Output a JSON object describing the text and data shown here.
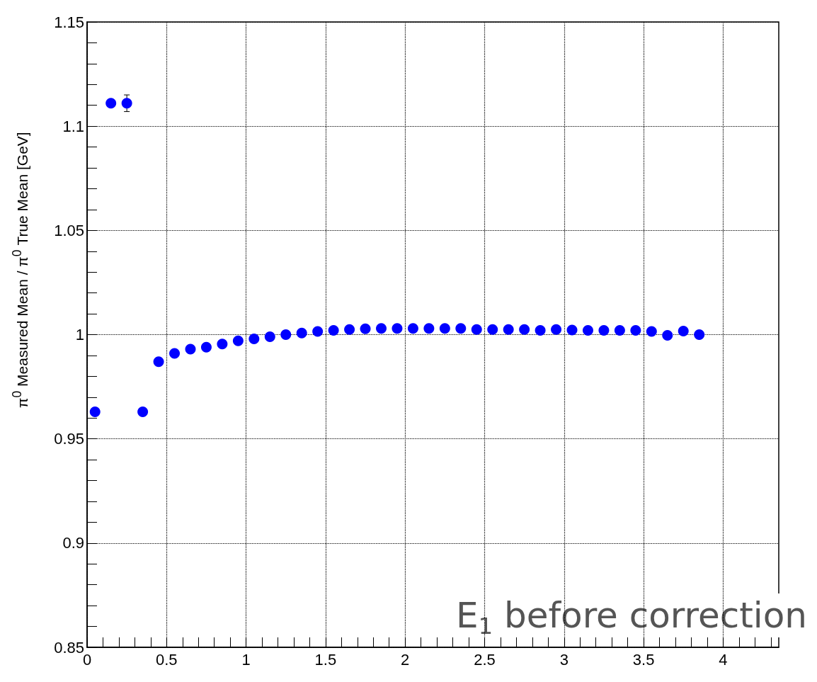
{
  "chart_data": {
    "type": "scatter",
    "ylabel": "π$^{0}$ Measured Mean / π$^{0}$ True Mean [GeV]",
    "annotations": [
      "E$_{1}$ before correction"
    ],
    "x": [
      0.05,
      0.15,
      0.25,
      0.35,
      0.45,
      0.55,
      0.65,
      0.75,
      0.85,
      0.95,
      1.05,
      1.15,
      1.25,
      1.35,
      1.45,
      1.55,
      1.65,
      1.75,
      1.85,
      1.95,
      2.05,
      2.15,
      2.25,
      2.35,
      2.45,
      2.55,
      2.65,
      2.75,
      2.85,
      2.95,
      3.05,
      3.15,
      3.25,
      3.35,
      3.45,
      3.55,
      3.65,
      3.75,
      3.85
    ],
    "series": [
      {
        "color": "#0000ff",
        "values": [
          0.963,
          1.111,
          1.111,
          0.963,
          0.987,
          0.991,
          0.993,
          0.994,
          0.9955,
          0.997,
          0.998,
          0.999,
          1.0,
          1.0008,
          1.0015,
          1.002,
          1.0025,
          1.0028,
          1.003,
          1.003,
          1.003,
          1.003,
          1.003,
          1.003,
          1.0025,
          1.0025,
          1.0025,
          1.0025,
          1.002,
          1.0025,
          1.0022,
          1.002,
          1.002,
          1.002,
          1.002,
          1.0015,
          0.9997,
          1.0017,
          1.0
        ],
        "errors": [
          null,
          null,
          0.004,
          null,
          null,
          null,
          null,
          null,
          null,
          null,
          null,
          null,
          null,
          null,
          null,
          null,
          null,
          null,
          null,
          null,
          null,
          null,
          null,
          null,
          null,
          null,
          null,
          null,
          null,
          null,
          null,
          null,
          null,
          null,
          null,
          null,
          null,
          null,
          null
        ]
      }
    ],
    "xlim": [
      0,
      4.35
    ],
    "xticks": [
      0,
      {
        "value": 0.1,
        "label": null
      },
      {
        "value": 0.2,
        "label": null
      },
      {
        "value": 0.3,
        "label": null
      },
      {
        "value": 0.4,
        "label": null
      },
      0.5,
      {
        "value": 0.6,
        "label": null
      },
      {
        "value": 0.7,
        "label": null
      },
      {
        "value": 0.8,
        "label": null
      },
      {
        "value": 0.9,
        "label": null
      },
      1,
      {
        "value": 1.1,
        "label": null
      },
      {
        "value": 1.2,
        "label": null
      },
      {
        "value": 1.3,
        "label": null
      },
      {
        "value": 1.4,
        "label": null
      },
      1.5,
      {
        "value": 1.6,
        "label": null
      },
      {
        "value": 1.7,
        "label": null
      },
      {
        "value": 1.8,
        "label": null
      },
      {
        "value": 1.9,
        "label": null
      },
      2,
      {
        "value": 2.1,
        "label": null
      },
      {
        "value": 2.2,
        "label": null
      },
      {
        "value": 2.3,
        "label": null
      },
      {
        "value": 2.4,
        "label": null
      },
      2.5,
      {
        "value": 2.6,
        "label": null
      },
      {
        "value": 2.7,
        "label": null
      },
      {
        "value": 2.8,
        "label": null
      },
      {
        "value": 2.9,
        "label": null
      },
      3,
      {
        "value": 3.1,
        "label": null
      },
      {
        "value": 3.2,
        "label": null
      },
      {
        "value": 3.3,
        "label": null
      },
      {
        "value": 3.4,
        "label": null
      },
      3.5,
      {
        "value": 3.6,
        "label": null
      },
      {
        "value": 3.7,
        "label": null
      },
      {
        "value": 3.8,
        "label": null
      },
      {
        "value": 3.9,
        "label": null
      },
      4,
      {
        "value": 4.1,
        "label": null
      },
      {
        "value": 4.2,
        "label": null
      },
      {
        "value": 4.3,
        "label": null
      }
    ],
    "ylim": [
      0.85,
      1.15
    ],
    "yticks": [
      0.85,
      {
        "value": 0.86,
        "label": null
      },
      {
        "value": 0.87,
        "label": null
      },
      {
        "value": 0.88,
        "label": null
      },
      {
        "value": 0.89,
        "label": null
      },
      0.9,
      {
        "value": 0.91,
        "label": null
      },
      {
        "value": 0.92,
        "label": null
      },
      {
        "value": 0.93,
        "label": null
      },
      {
        "value": 0.94,
        "label": null
      },
      0.95,
      {
        "value": 0.96,
        "label": null
      },
      {
        "value": 0.97,
        "label": null
      },
      {
        "value": 0.98,
        "label": null
      },
      {
        "value": 0.99,
        "label": null
      },
      1,
      {
        "value": 1.01,
        "label": null
      },
      {
        "value": 1.02,
        "label": null
      },
      {
        "value": 1.03,
        "label": null
      },
      {
        "value": 1.04,
        "label": null
      },
      1.05,
      {
        "value": 1.06,
        "label": null
      },
      {
        "value": 1.07,
        "label": null
      },
      {
        "value": 1.08,
        "label": null
      },
      {
        "value": 1.09,
        "label": null
      },
      1.1,
      {
        "value": 1.11,
        "label": null
      },
      {
        "value": 1.12,
        "label": null
      },
      {
        "value": 1.13,
        "label": null
      },
      {
        "value": 1.14,
        "label": null
      },
      1.15
    ],
    "grid": true,
    "marker": "circle"
  }
}
